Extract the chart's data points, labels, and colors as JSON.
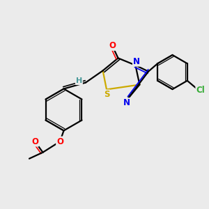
{
  "background_color": "#ebebeb",
  "bond_color": "#000000",
  "atom_colors": {
    "O": "#ff0000",
    "N": "#0000ee",
    "S": "#ccaa00",
    "Cl": "#33aa33",
    "C": "#000000",
    "H": "#4a9999"
  },
  "figsize": [
    3.0,
    3.0
  ],
  "dpi": 100
}
